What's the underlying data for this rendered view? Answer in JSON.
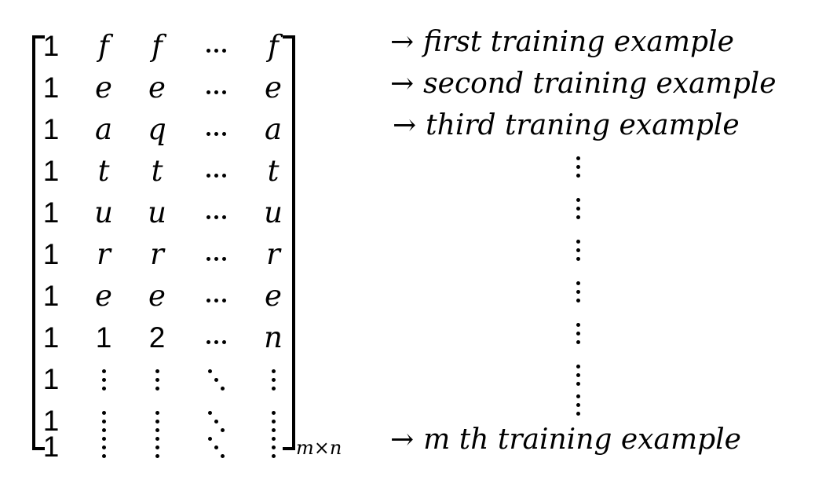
{
  "matrix": {
    "rows": [
      [
        "1",
        "f",
        "f",
        "⋯",
        "f"
      ],
      [
        "1",
        "e",
        "e",
        "⋯",
        "e"
      ],
      [
        "1",
        "a",
        "q",
        "⋯",
        "a"
      ],
      [
        "1",
        "t",
        "t",
        "⋯",
        "t"
      ],
      [
        "1",
        "u",
        "u",
        "⋯",
        "u"
      ],
      [
        "1",
        "r",
        "r",
        "⋯",
        "r"
      ],
      [
        "1",
        "e",
        "e",
        "⋯",
        "e"
      ],
      [
        "1",
        "1",
        "2",
        "⋯",
        "n"
      ],
      [
        "1",
        "⋮",
        "⋮",
        "⋱",
        "⋮"
      ],
      [
        "1",
        "⋮",
        "⋮",
        "⋱",
        "⋮"
      ],
      [
        "1",
        "⋮",
        "⋮",
        "⋱",
        "⋮"
      ]
    ],
    "dimension_label": "m×n"
  },
  "annotations": {
    "arrow": "→",
    "row1": "first training example",
    "row2": "second training example",
    "row3": "third traning example",
    "last": "m th training example",
    "vertical_ellipsis": "⋮"
  }
}
